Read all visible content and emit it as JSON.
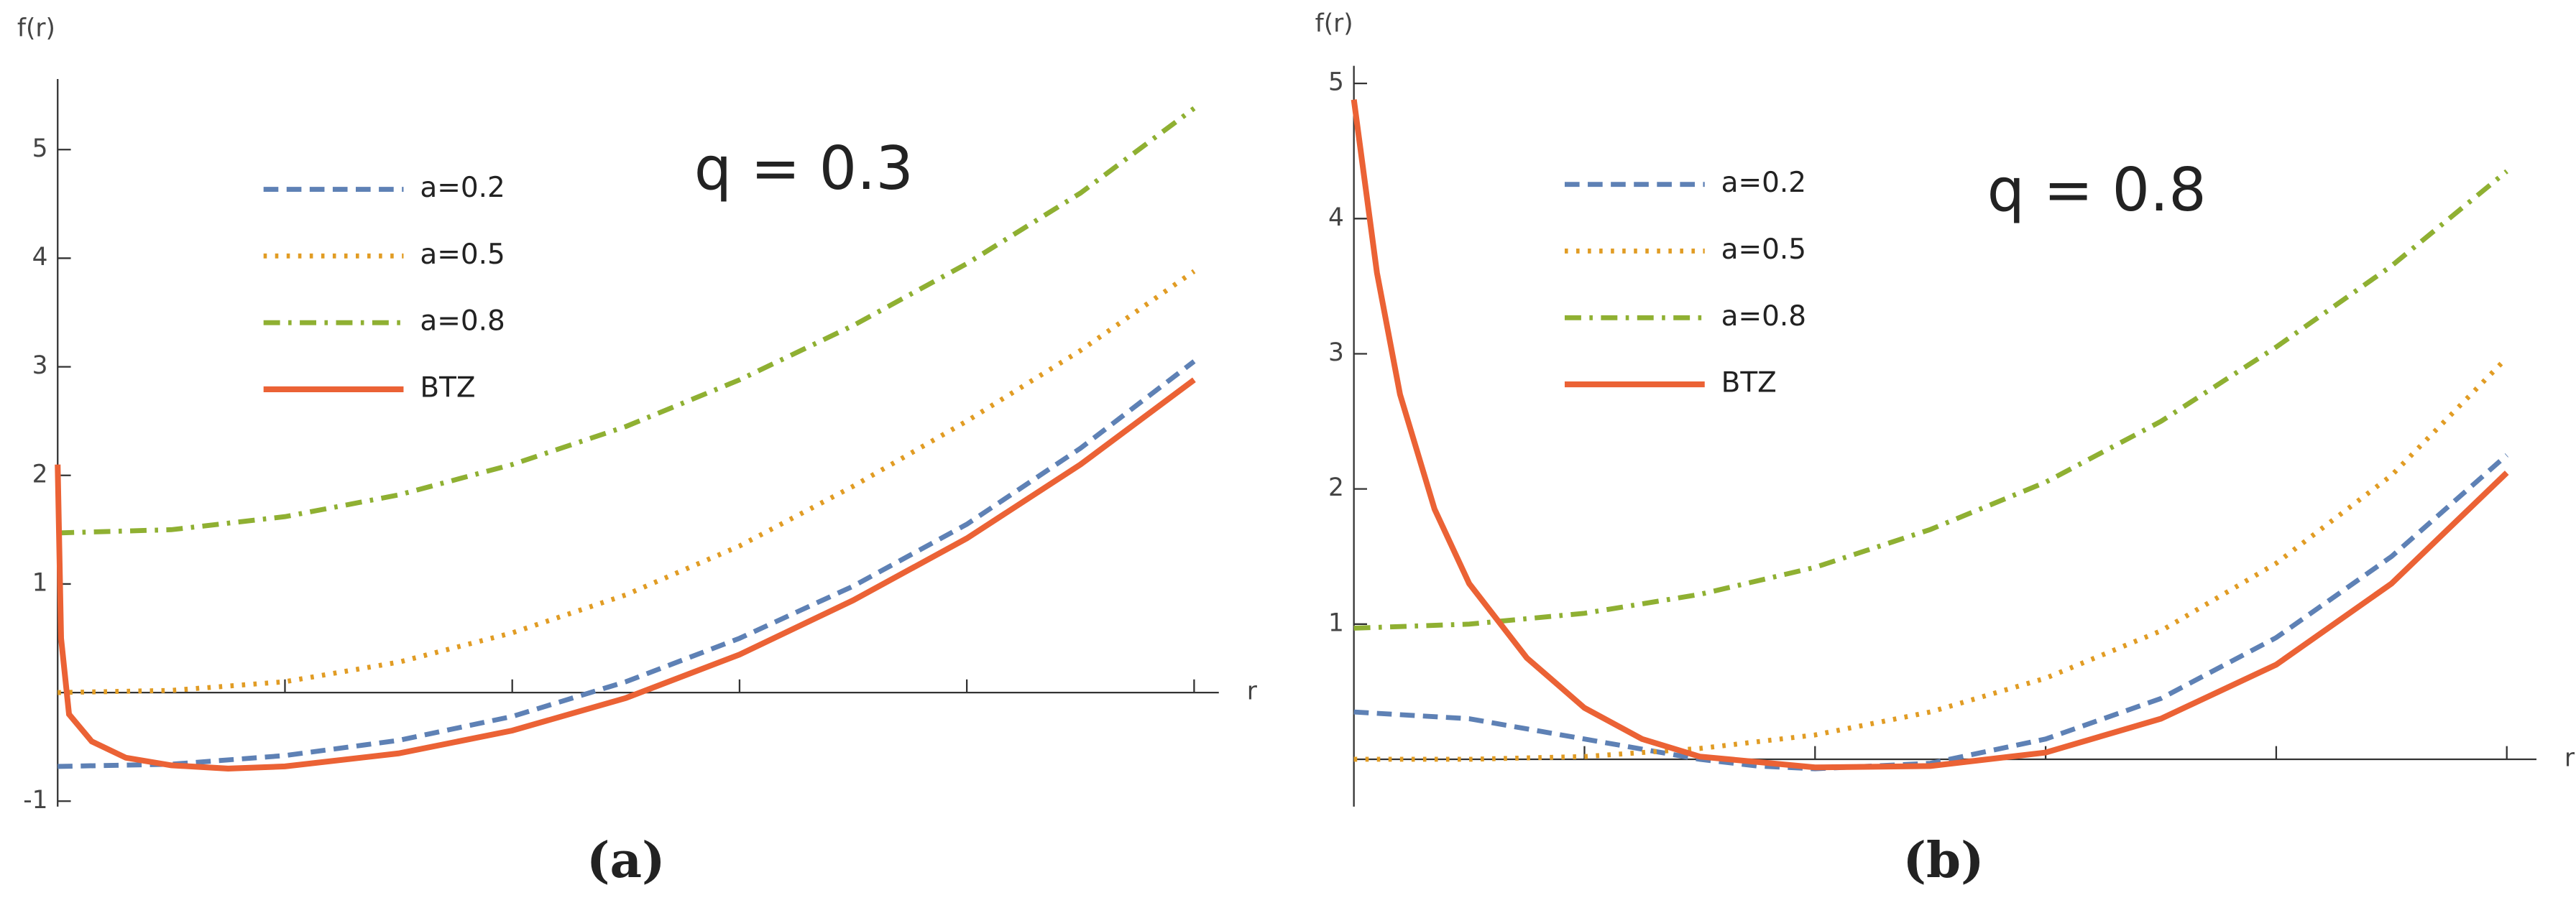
{
  "chart_data": [
    {
      "type": "line",
      "title": "q = 0.3",
      "xlabel": "r",
      "ylabel": "f(r)",
      "caption": "(a)",
      "xlim": [
        0,
        1
      ],
      "xticks": [
        0.2,
        0.4,
        0.6,
        0.8,
        1
      ],
      "ylim": [
        -1.05,
        5.65
      ],
      "yticks": [
        -1,
        1,
        2,
        3,
        4,
        5
      ],
      "series": [
        {
          "name": "a=0.2",
          "color": "#5e81b5",
          "style": "dashed",
          "x": [
            0,
            0.1,
            0.2,
            0.3,
            0.4,
            0.5,
            0.6,
            0.7,
            0.8,
            0.9,
            1
          ],
          "values": [
            -0.68,
            -0.66,
            -0.58,
            -0.44,
            -0.22,
            0.1,
            0.5,
            0.98,
            1.55,
            2.25,
            3.05
          ]
        },
        {
          "name": "a=0.5",
          "color": "#e19c24",
          "style": "dotted",
          "x": [
            0,
            0.1,
            0.2,
            0.3,
            0.4,
            0.5,
            0.6,
            0.7,
            0.8,
            0.9,
            1
          ],
          "values": [
            0,
            0.02,
            0.1,
            0.28,
            0.55,
            0.9,
            1.35,
            1.9,
            2.5,
            3.15,
            3.88
          ]
        },
        {
          "name": "a=0.8",
          "color": "#8fb032",
          "style": "dashdot",
          "x": [
            0,
            0.1,
            0.2,
            0.3,
            0.4,
            0.5,
            0.6,
            0.7,
            0.8,
            0.9,
            1
          ],
          "values": [
            1.47,
            1.5,
            1.62,
            1.82,
            2.1,
            2.45,
            2.88,
            3.38,
            3.95,
            4.6,
            5.38
          ]
        },
        {
          "name": "BTZ",
          "color": "#eb6235",
          "style": "solid",
          "x": [
            0,
            0.003,
            0.01,
            0.03,
            0.06,
            0.1,
            0.15,
            0.2,
            0.3,
            0.4,
            0.5,
            0.6,
            0.7,
            0.8,
            0.9,
            1
          ],
          "values": [
            2.1,
            0.5,
            -0.2,
            -0.45,
            -0.6,
            -0.67,
            -0.7,
            -0.68,
            -0.56,
            -0.35,
            -0.05,
            0.35,
            0.85,
            1.42,
            2.1,
            2.88
          ]
        }
      ]
    },
    {
      "type": "line",
      "title": "q = 0.8",
      "xlabel": "r",
      "ylabel": "f(r)",
      "caption": "(b)",
      "xlim": [
        0,
        1
      ],
      "xticks": [
        0.2,
        0.4,
        0.6,
        0.8,
        1
      ],
      "ylim": [
        -0.35,
        5.13
      ],
      "yticks": [
        1,
        2,
        3,
        4,
        5
      ],
      "series": [
        {
          "name": "a=0.2",
          "color": "#5e81b5",
          "style": "dashed",
          "x": [
            0,
            0.1,
            0.2,
            0.3,
            0.35,
            0.4,
            0.5,
            0.6,
            0.7,
            0.8,
            0.9,
            1
          ],
          "values": [
            0.35,
            0.3,
            0.15,
            0.0,
            -0.05,
            -0.07,
            -0.03,
            0.15,
            0.45,
            0.9,
            1.5,
            2.25
          ]
        },
        {
          "name": "a=0.5",
          "color": "#e19c24",
          "style": "dotted",
          "x": [
            0,
            0.1,
            0.2,
            0.3,
            0.4,
            0.5,
            0.6,
            0.7,
            0.8,
            0.9,
            1
          ],
          "values": [
            0,
            0,
            0.02,
            0.08,
            0.18,
            0.35,
            0.6,
            0.95,
            1.45,
            2.1,
            2.97
          ]
        },
        {
          "name": "a=0.8",
          "color": "#8fb032",
          "style": "dashdot",
          "x": [
            0,
            0.1,
            0.2,
            0.3,
            0.4,
            0.5,
            0.6,
            0.7,
            0.8,
            0.9,
            1
          ],
          "values": [
            0.97,
            1.0,
            1.08,
            1.22,
            1.42,
            1.7,
            2.05,
            2.5,
            3.05,
            3.65,
            4.35
          ]
        },
        {
          "name": "BTZ",
          "color": "#eb6235",
          "style": "solid",
          "x": [
            0,
            0.02,
            0.04,
            0.07,
            0.1,
            0.15,
            0.2,
            0.25,
            0.3,
            0.4,
            0.5,
            0.6,
            0.7,
            0.8,
            0.9,
            1
          ],
          "values": [
            4.88,
            3.6,
            2.7,
            1.85,
            1.3,
            0.75,
            0.38,
            0.15,
            0.02,
            -0.06,
            -0.05,
            0.05,
            0.3,
            0.7,
            1.3,
            2.12
          ]
        }
      ]
    }
  ]
}
